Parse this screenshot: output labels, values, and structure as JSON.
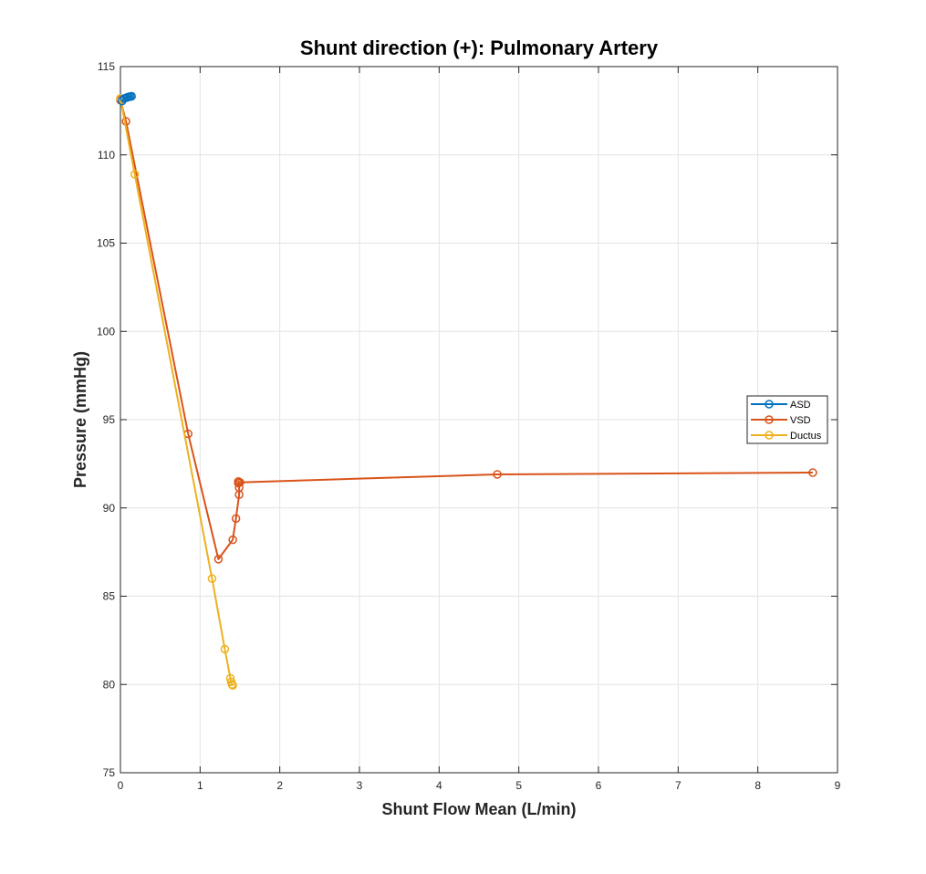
{
  "chart_data": {
    "type": "line",
    "title": "Shunt direction (+): Pulmonary Artery",
    "xlabel": "Shunt Flow Mean (L/min)",
    "ylabel": "Pressure (mmHg)",
    "xlim": [
      0,
      9
    ],
    "ylim": [
      75,
      115
    ],
    "xticks": [
      0,
      1,
      2,
      3,
      4,
      5,
      6,
      7,
      8,
      9
    ],
    "yticks": [
      75,
      80,
      85,
      90,
      95,
      100,
      105,
      110,
      115
    ],
    "grid": true,
    "legend_position": "right",
    "series": [
      {
        "name": "ASD",
        "color": "#0072BD",
        "marker": "circle",
        "points": [
          [
            0.02,
            113.05
          ],
          [
            0.05,
            113.2
          ],
          [
            0.08,
            113.25
          ],
          [
            0.1,
            113.28
          ],
          [
            0.12,
            113.3
          ],
          [
            0.14,
            113.32
          ]
        ]
      },
      {
        "name": "VSD",
        "color": "#D95319",
        "marker": "circle",
        "points": [
          [
            0.0,
            113.1
          ],
          [
            0.07,
            111.9
          ],
          [
            0.85,
            94.2
          ],
          [
            1.23,
            87.1
          ],
          [
            1.41,
            88.2
          ],
          [
            1.45,
            89.4
          ],
          [
            1.49,
            90.75
          ],
          [
            1.49,
            91.15
          ],
          [
            1.48,
            91.4
          ],
          [
            1.48,
            91.5
          ],
          [
            1.5,
            91.45
          ],
          [
            4.73,
            91.9
          ],
          [
            8.69,
            92.0
          ]
        ]
      },
      {
        "name": "Ductus",
        "color": "#EDB120",
        "marker": "circle",
        "points": [
          [
            0.0,
            113.2
          ],
          [
            0.18,
            108.9
          ],
          [
            1.15,
            86.0
          ],
          [
            1.31,
            82.0
          ],
          [
            1.38,
            80.35
          ],
          [
            1.39,
            80.15
          ],
          [
            1.4,
            80.0
          ],
          [
            1.41,
            79.95
          ]
        ]
      }
    ]
  }
}
